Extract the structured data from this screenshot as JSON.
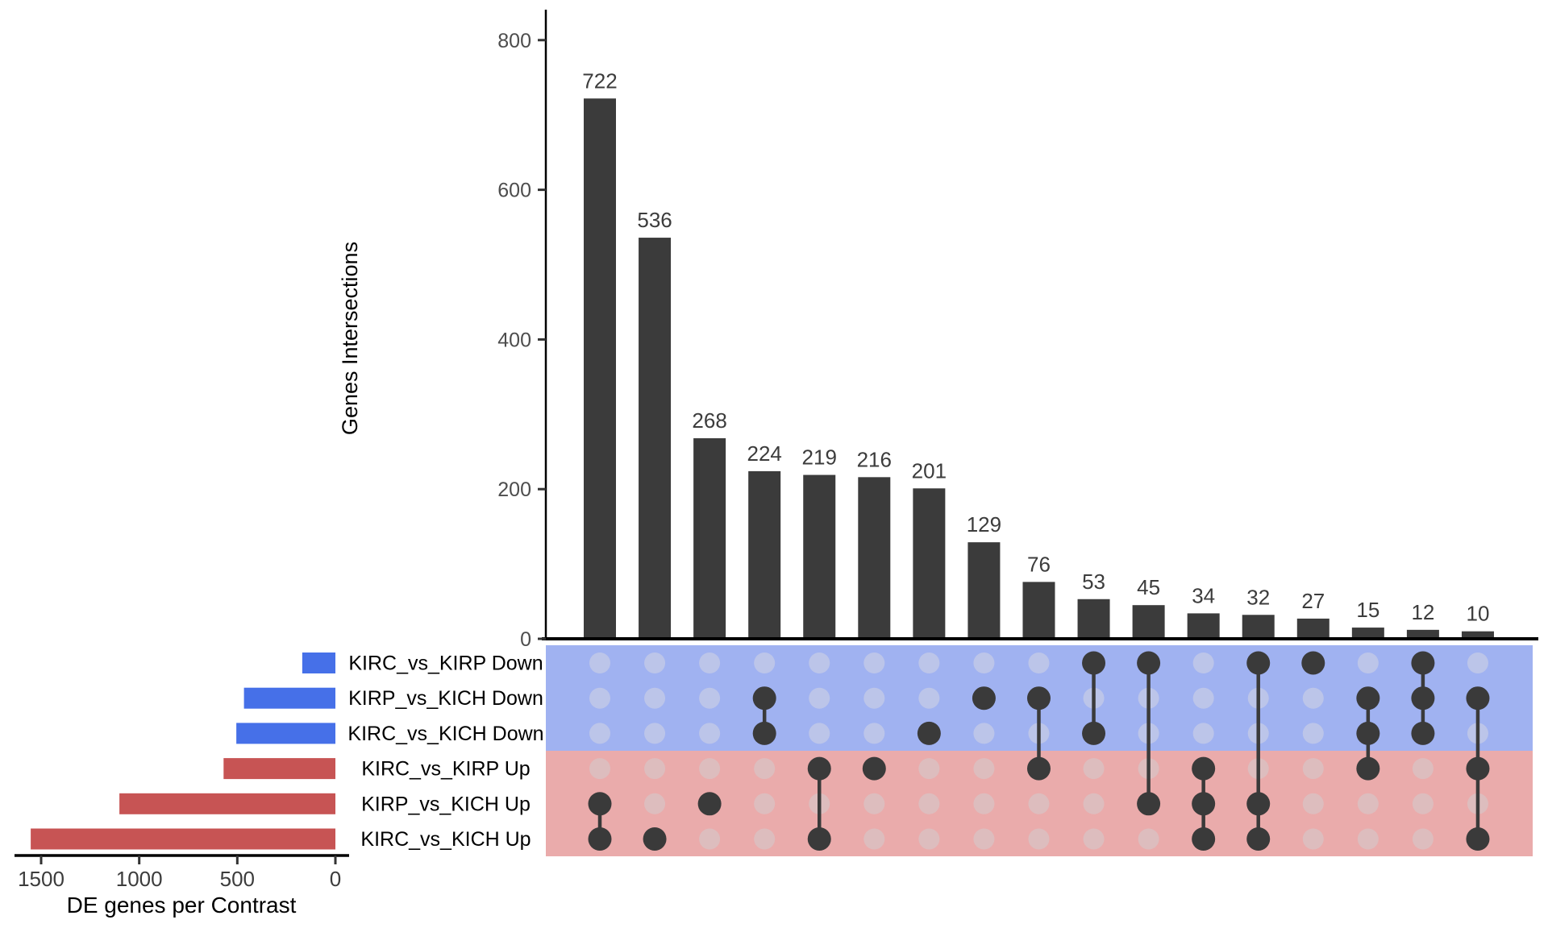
{
  "chart_data": {
    "type": "bar",
    "subtype": "upset-plot",
    "ylabel": "Genes Intersections",
    "set_axis_label": "DE genes per Contrast",
    "y_ticks": [
      0,
      200,
      400,
      600,
      800
    ],
    "ylim": [
      0,
      840
    ],
    "set_ticks": [
      1500,
      1000,
      500,
      0
    ],
    "set_xlim": [
      0,
      1640
    ],
    "grid": "off",
    "sets": [
      {
        "label": "KIRC_vs_KIRP Down",
        "size": 169,
        "direction": "down"
      },
      {
        "label": "KIRP_vs_KICH Down",
        "size": 466,
        "direction": "down"
      },
      {
        "label": "KIRC_vs_KICH Down",
        "size": 505,
        "direction": "down"
      },
      {
        "label": "KIRC_vs_KIRP Up",
        "size": 570,
        "direction": "up"
      },
      {
        "label": "KIRP_vs_KICH Up",
        "size": 1101,
        "direction": "up"
      },
      {
        "label": "KIRC_vs_KICH Up",
        "size": 1553,
        "direction": "up"
      }
    ],
    "intersections": [
      {
        "value": 722,
        "sets": [
          4,
          5
        ]
      },
      {
        "value": 536,
        "sets": [
          5
        ]
      },
      {
        "value": 268,
        "sets": [
          4
        ]
      },
      {
        "value": 224,
        "sets": [
          1,
          2
        ]
      },
      {
        "value": 219,
        "sets": [
          3,
          5
        ]
      },
      {
        "value": 216,
        "sets": [
          3
        ]
      },
      {
        "value": 201,
        "sets": [
          2
        ]
      },
      {
        "value": 129,
        "sets": [
          1
        ]
      },
      {
        "value": 76,
        "sets": [
          1,
          3
        ]
      },
      {
        "value": 53,
        "sets": [
          0,
          2
        ]
      },
      {
        "value": 45,
        "sets": [
          0,
          4
        ]
      },
      {
        "value": 34,
        "sets": [
          3,
          4,
          5
        ]
      },
      {
        "value": 32,
        "sets": [
          0,
          4,
          5
        ]
      },
      {
        "value": 27,
        "sets": [
          0
        ]
      },
      {
        "value": 15,
        "sets": [
          1,
          2,
          3
        ]
      },
      {
        "value": 12,
        "sets": [
          0,
          1,
          2
        ]
      },
      {
        "value": 10,
        "sets": [
          1,
          3,
          5
        ]
      }
    ],
    "colors": {
      "intersection_bar": "#3b3b3b",
      "active_dot": "#3a3a3a",
      "connector": "#3a3a3a",
      "set_bar_down": "#4670e8",
      "set_bar_up": "#c75454",
      "band_down_bg": "#a0b2f1",
      "band_up_bg": "#eaabab",
      "inactive_dot_down": "#bcc5e9",
      "inactive_dot_up": "#ddbdbe",
      "axis": "#000000"
    }
  }
}
